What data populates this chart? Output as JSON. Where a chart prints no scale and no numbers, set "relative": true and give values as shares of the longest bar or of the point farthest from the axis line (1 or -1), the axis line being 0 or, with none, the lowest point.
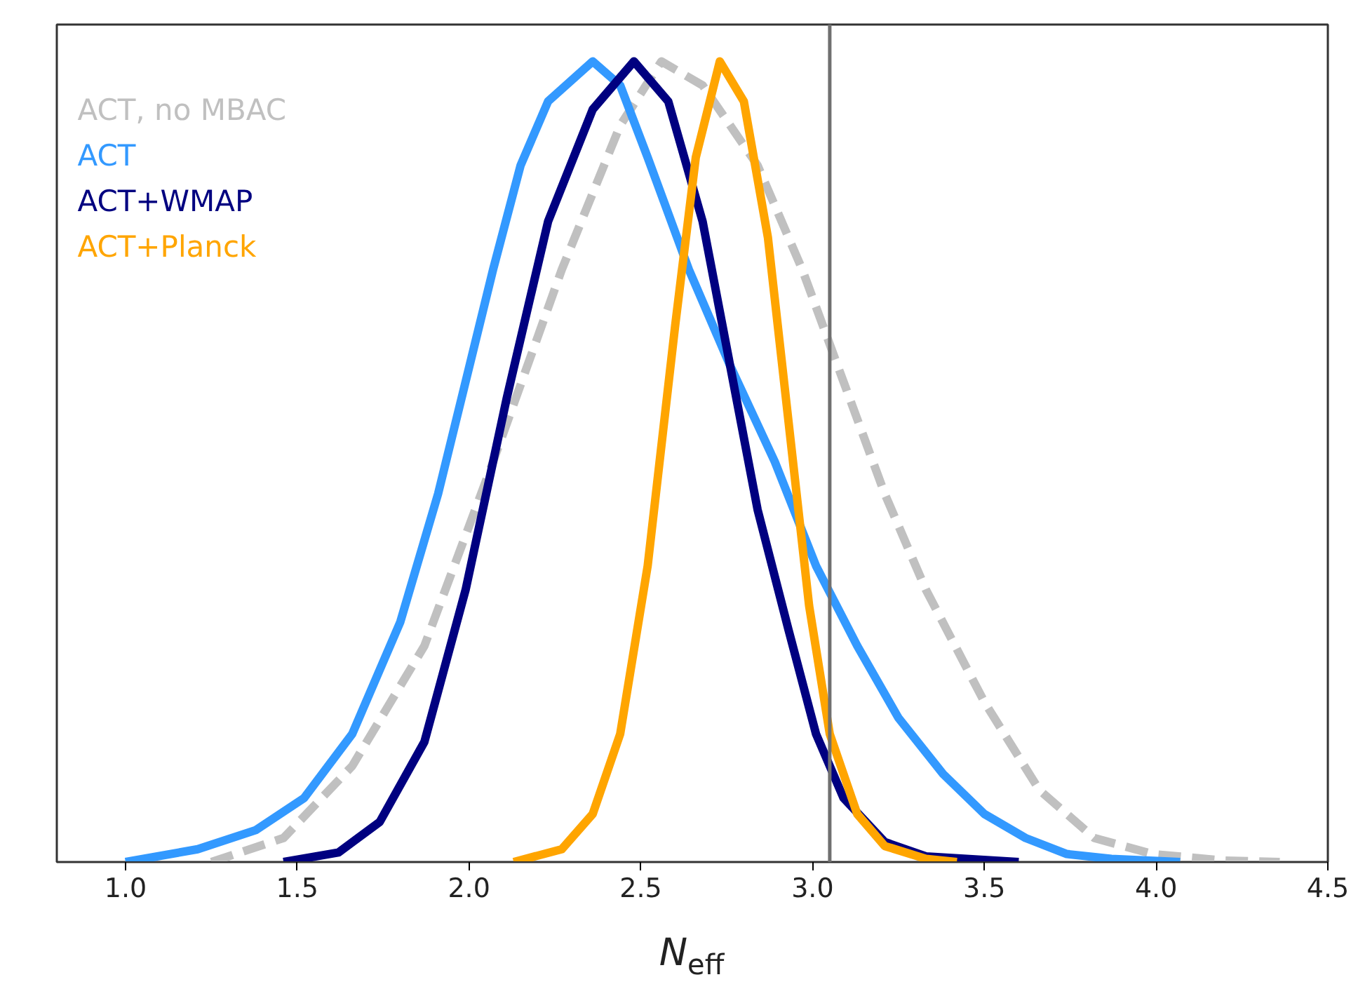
{
  "chart_data": {
    "type": "line",
    "relative": true,
    "xlabel": "N$_{eff}$",
    "xlim": [
      0.8,
      4.5
    ],
    "xticks": [
      {
        "value": 1.0,
        "label": "1.0"
      },
      {
        "value": 1.5,
        "label": "1.5"
      },
      {
        "value": 2.0,
        "label": "2.0"
      },
      {
        "value": 2.5,
        "label": "2.5"
      },
      {
        "value": 3.0,
        "label": "3.0"
      },
      {
        "value": 3.5,
        "label": "3.5"
      },
      {
        "value": 4.0,
        "label": "4.0"
      },
      {
        "value": 4.5,
        "label": "4.5"
      }
    ],
    "grid": false,
    "legend": "top left",
    "marker": "none",
    "ref_lines": [
      {
        "axis": "x",
        "value": 3.05,
        "color": "#707070"
      }
    ],
    "series": [
      {
        "name": "ACT, no MBAC",
        "color": "#c0c0c0",
        "line_style": "dashed",
        "x": [
          1.25,
          1.46,
          1.66,
          1.87,
          2.07,
          2.27,
          2.44,
          2.56,
          2.68,
          2.84,
          2.97,
          3.09,
          3.21,
          3.33,
          3.5,
          3.66,
          3.82,
          3.99,
          4.19,
          4.36
        ],
        "values": [
          0,
          0.03,
          0.12,
          0.27,
          0.5,
          0.74,
          0.92,
          1.0,
          0.97,
          0.87,
          0.74,
          0.6,
          0.46,
          0.34,
          0.2,
          0.09,
          0.03,
          0.01,
          0.002,
          0
        ]
      },
      {
        "name": "ACT",
        "color": "#3399ff",
        "line_style": "solid",
        "x": [
          1.0,
          1.21,
          1.38,
          1.52,
          1.66,
          1.8,
          1.91,
          1.99,
          2.07,
          2.15,
          2.23,
          2.36,
          2.44,
          2.52,
          2.64,
          2.76,
          2.89,
          3.01,
          3.13,
          3.25,
          3.38,
          3.5,
          3.62,
          3.74,
          3.87,
          4.07
        ],
        "values": [
          0,
          0.016,
          0.04,
          0.08,
          0.16,
          0.3,
          0.46,
          0.6,
          0.74,
          0.87,
          0.95,
          1.0,
          0.97,
          0.88,
          0.74,
          0.62,
          0.5,
          0.37,
          0.27,
          0.18,
          0.11,
          0.06,
          0.03,
          0.01,
          0.004,
          0
        ]
      },
      {
        "name": "ACT+WMAP",
        "color": "#000080",
        "line_style": "solid",
        "x": [
          1.46,
          1.62,
          1.74,
          1.87,
          1.99,
          2.11,
          2.23,
          2.36,
          2.48,
          2.58,
          2.68,
          2.76,
          2.84,
          2.93,
          3.01,
          3.09,
          3.21,
          3.33,
          3.6
        ],
        "values": [
          0,
          0.012,
          0.05,
          0.15,
          0.34,
          0.58,
          0.8,
          0.94,
          1.0,
          0.95,
          0.8,
          0.62,
          0.44,
          0.29,
          0.16,
          0.08,
          0.025,
          0.007,
          0
        ]
      },
      {
        "name": "ACT+Planck",
        "color": "#ffa500",
        "line_style": "solid",
        "x": [
          2.13,
          2.27,
          2.36,
          2.44,
          2.52,
          2.6,
          2.66,
          2.73,
          2.8,
          2.87,
          2.93,
          2.99,
          3.05,
          3.13,
          3.21,
          3.33,
          3.42
        ],
        "values": [
          0,
          0.016,
          0.06,
          0.16,
          0.37,
          0.67,
          0.88,
          1.0,
          0.95,
          0.78,
          0.55,
          0.32,
          0.16,
          0.06,
          0.02,
          0.004,
          0
        ]
      }
    ]
  }
}
